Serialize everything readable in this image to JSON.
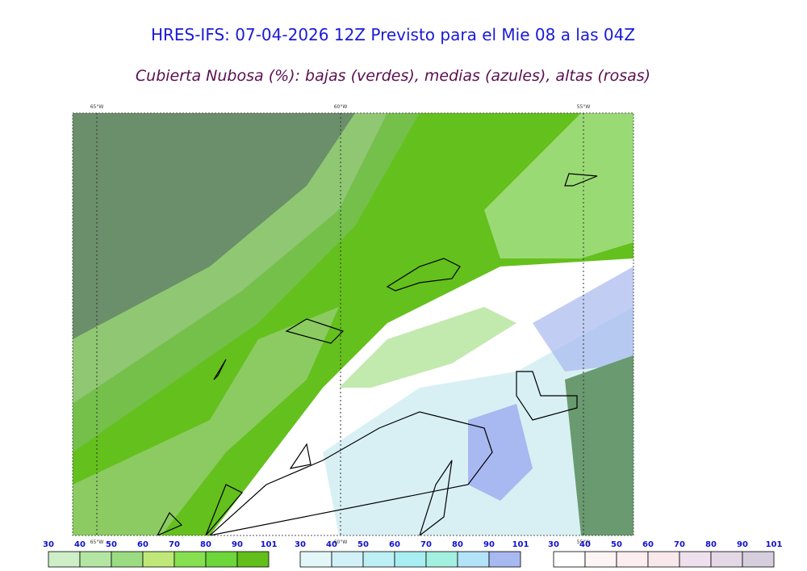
{
  "header": {
    "title": "HRES-IFS: 07-04-2026 12Z Previsto para el Mie 08 a las 04Z",
    "subtitle": "Cubierta Nubosa (%): bajas (verdes), medias (azules), altas (rosas)"
  },
  "map": {
    "longitude_labels_top": [
      "65°W",
      "60°W",
      "55°W"
    ],
    "longitude_labels_bottom": [
      "65°W",
      "60°W",
      "55°W"
    ]
  },
  "colorbars": [
    {
      "ticks": [
        30,
        40,
        50,
        60,
        70,
        80,
        90,
        101
      ],
      "colors": [
        "#cdeec6",
        "#b3e6a3",
        "#9bdc82",
        "#bfe878",
        "#86e050",
        "#6cd63a",
        "#62be1a"
      ]
    },
    {
      "ticks": [
        30,
        40,
        50,
        60,
        70,
        80,
        90,
        101
      ],
      "colors": [
        "#e4f7f8",
        "#d2f0f8",
        "#bdf0f4",
        "#a8eef2",
        "#a3efe0",
        "#b3e3f8",
        "#a8b8f0"
      ]
    },
    {
      "ticks": [
        30,
        40,
        50,
        60,
        70,
        80,
        90,
        101
      ],
      "colors": [
        "#ffffff",
        "#fdf4f4",
        "#fbedf0",
        "#f8e8ec",
        "#eee0ec",
        "#e4d8e6",
        "#d6cedc"
      ]
    }
  ]
}
